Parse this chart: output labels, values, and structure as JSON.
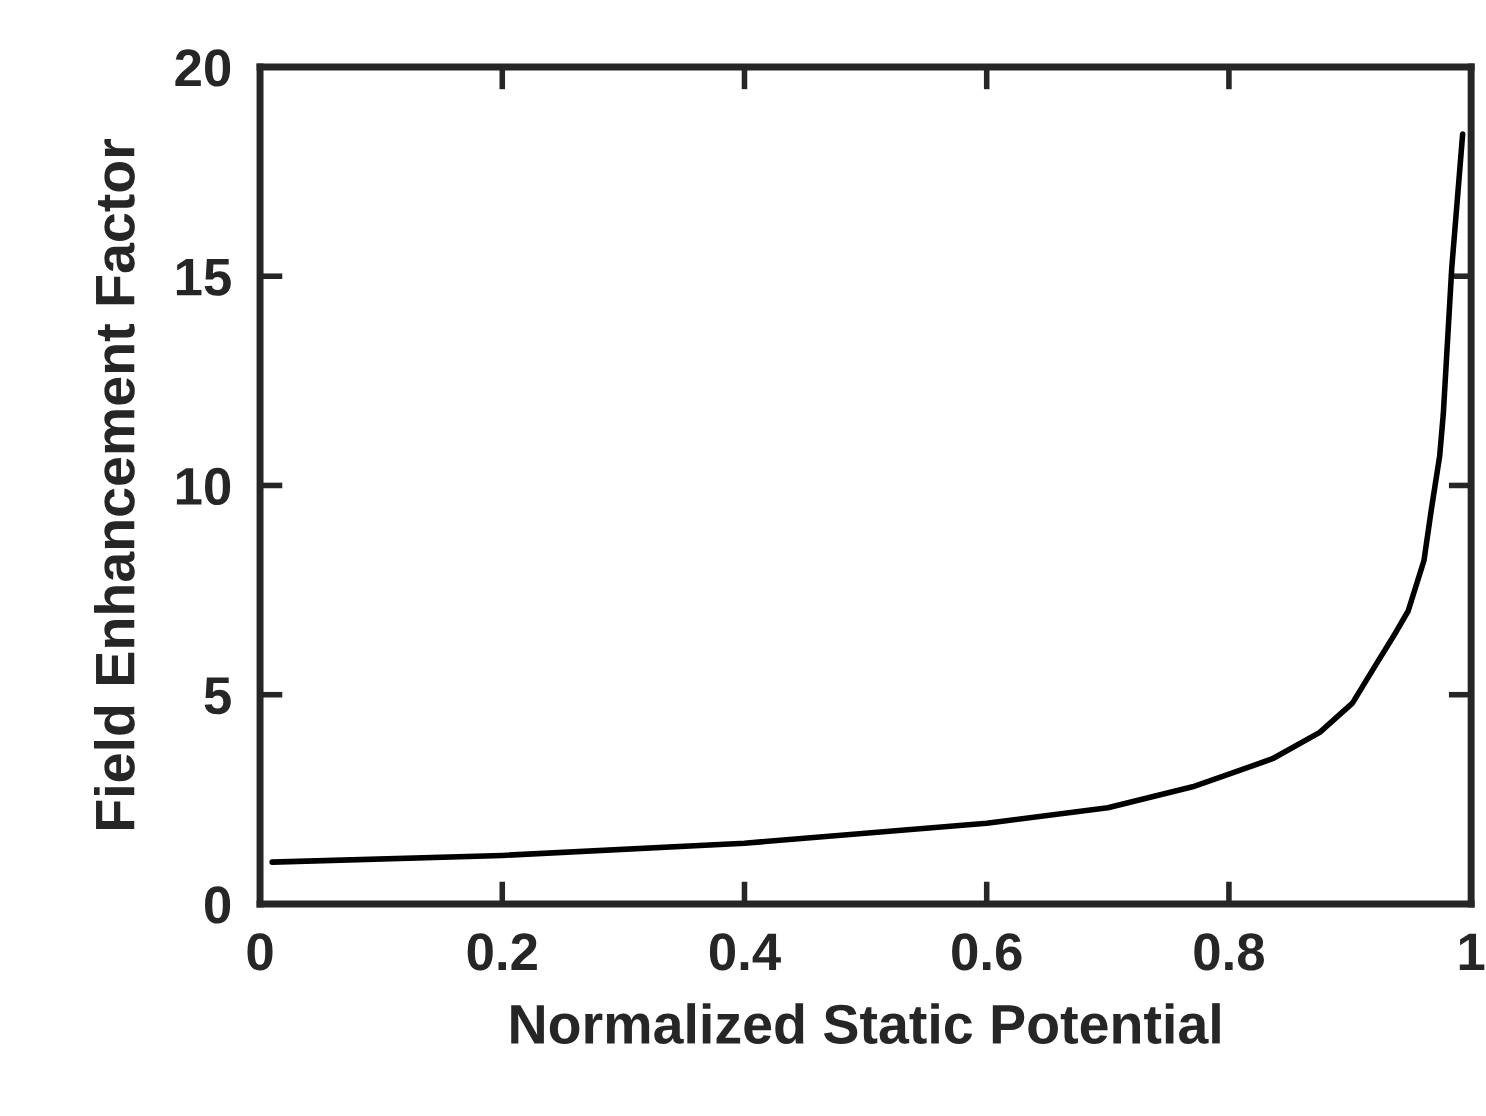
{
  "chart_data": {
    "type": "line",
    "xlabel": "Normalized Static Potential",
    "ylabel": "Field Enhancement Factor",
    "x": [
      0.01,
      0.2,
      0.4,
      0.6,
      0.7,
      0.77,
      0.8,
      0.836,
      0.875,
      0.902,
      0.921,
      0.938,
      0.948,
      0.961,
      0.967,
      0.974,
      0.977,
      0.984,
      0.993
    ],
    "series": [
      {
        "color": "#000000",
        "values": [
          1.0,
          1.16,
          1.45,
          1.93,
          2.3,
          2.8,
          3.1,
          3.47,
          4.1,
          4.8,
          5.7,
          6.5,
          7.0,
          8.2,
          9.4,
          10.7,
          11.7,
          15.2,
          18.4
        ]
      }
    ],
    "xlim": [
      0,
      1
    ],
    "ylim": [
      0,
      20
    ],
    "xticks": [
      0,
      0.2,
      0.4,
      0.6,
      0.8,
      1
    ],
    "yticks": [
      0,
      5,
      10,
      15,
      20
    ],
    "grid": false,
    "legend": false,
    "marker": "none",
    "line_style": "solid"
  }
}
